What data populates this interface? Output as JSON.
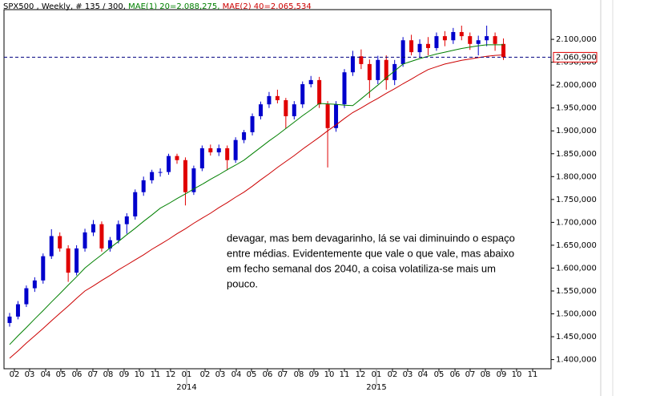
{
  "chart_data": {
    "type": "candlestick",
    "header": [
      "SPX500 , Weekly, # 135 / 300,",
      "MAE(1) 20=2.088,275,",
      "MAE(2) 40=2.065,534"
    ],
    "ohlc": [
      [
        1480,
        1502,
        1472,
        1494
      ],
      [
        1494,
        1528,
        1488,
        1521
      ],
      [
        1521,
        1562,
        1515,
        1556
      ],
      [
        1556,
        1580,
        1548,
        1573
      ],
      [
        1573,
        1632,
        1566,
        1626
      ],
      [
        1626,
        1685,
        1620,
        1670
      ],
      [
        1670,
        1678,
        1636,
        1643
      ],
      [
        1643,
        1650,
        1570,
        1590
      ],
      [
        1590,
        1650,
        1584,
        1643
      ],
      [
        1643,
        1686,
        1636,
        1678
      ],
      [
        1678,
        1705,
        1670,
        1696
      ],
      [
        1696,
        1702,
        1636,
        1643
      ],
      [
        1643,
        1668,
        1636,
        1661
      ],
      [
        1661,
        1704,
        1654,
        1696
      ],
      [
        1696,
        1720,
        1675,
        1713
      ],
      [
        1713,
        1772,
        1706,
        1766
      ],
      [
        1766,
        1800,
        1758,
        1792
      ],
      [
        1792,
        1815,
        1785,
        1810
      ],
      [
        1810,
        1818,
        1800,
        1810
      ],
      [
        1810,
        1850,
        1804,
        1845
      ],
      [
        1845,
        1850,
        1828,
        1836
      ],
      [
        1836,
        1842,
        1737,
        1766
      ],
      [
        1766,
        1824,
        1760,
        1818
      ],
      [
        1818,
        1868,
        1812,
        1862
      ],
      [
        1862,
        1870,
        1846,
        1853
      ],
      [
        1853,
        1870,
        1845,
        1862
      ],
      [
        1862,
        1868,
        1814,
        1836
      ],
      [
        1836,
        1886,
        1830,
        1880
      ],
      [
        1880,
        1902,
        1873,
        1897
      ],
      [
        1897,
        1938,
        1890,
        1932
      ],
      [
        1932,
        1964,
        1925,
        1958
      ],
      [
        1958,
        1985,
        1950,
        1976
      ],
      [
        1976,
        1990,
        1960,
        1967
      ],
      [
        1967,
        1972,
        1905,
        1932
      ],
      [
        1932,
        1965,
        1925,
        1958
      ],
      [
        1958,
        2008,
        1950,
        2002
      ],
      [
        2002,
        2020,
        1995,
        2011
      ],
      [
        2011,
        2018,
        1950,
        1958
      ],
      [
        1958,
        1965,
        1820,
        1906
      ],
      [
        1906,
        1965,
        1898,
        1958
      ],
      [
        1958,
        2035,
        1950,
        2028
      ],
      [
        2028,
        2075,
        2020,
        2063
      ],
      [
        2063,
        2078,
        2035,
        2046
      ],
      [
        2046,
        2056,
        1972,
        2011
      ],
      [
        2011,
        2064,
        2002,
        2055
      ],
      [
        2055,
        2065,
        1990,
        2011
      ],
      [
        2011,
        2055,
        2000,
        2046
      ],
      [
        2046,
        2105,
        2040,
        2098
      ],
      [
        2098,
        2110,
        2065,
        2072
      ],
      [
        2072,
        2100,
        2060,
        2090
      ],
      [
        2090,
        2105,
        2065,
        2081
      ],
      [
        2081,
        2115,
        2075,
        2107
      ],
      [
        2107,
        2118,
        2085,
        2098
      ],
      [
        2098,
        2125,
        2090,
        2116
      ],
      [
        2116,
        2130,
        2098,
        2107
      ],
      [
        2107,
        2115,
        2077,
        2090
      ],
      [
        2090,
        2108,
        2065,
        2098
      ],
      [
        2098,
        2130,
        2085,
        2107
      ],
      [
        2107,
        2115,
        2075,
        2090
      ],
      [
        2090,
        2102,
        2055,
        2060.9
      ]
    ],
    "up_color": "#0000cc",
    "down_color": "#e00000",
    "series": [
      {
        "color": "#008000",
        "values": [
          1433,
          1452,
          1470,
          1489,
          1507,
          1526,
          1544,
          1563,
          1581,
          1600,
          1615,
          1629,
          1644,
          1658,
          1673,
          1687,
          1702,
          1716,
          1731,
          1741,
          1752,
          1762,
          1773,
          1783,
          1794,
          1804,
          1815,
          1825,
          1836,
          1850,
          1864,
          1878,
          1891,
          1905,
          1919,
          1933,
          1946,
          1960,
          1959,
          1958,
          1956,
          1955,
          1970,
          1985,
          2000,
          2016,
          2031,
          2046,
          2052,
          2058,
          2063,
          2068,
          2072,
          2076,
          2080,
          2083,
          2086,
          2088,
          2088,
          2088
        ]
      },
      {
        "color": "#cc0000",
        "values": [
          1403,
          1419,
          1436,
          1452,
          1468,
          1485,
          1501,
          1517,
          1534,
          1550,
          1561,
          1573,
          1584,
          1596,
          1607,
          1618,
          1629,
          1641,
          1652,
          1663,
          1675,
          1686,
          1698,
          1709,
          1720,
          1732,
          1743,
          1755,
          1766,
          1779,
          1793,
          1806,
          1820,
          1833,
          1846,
          1860,
          1873,
          1886,
          1900,
          1913,
          1927,
          1940,
          1950,
          1961,
          1971,
          1982,
          1992,
          2003,
          2013,
          2024,
          2034,
          2040,
          2046,
          2050,
          2054,
          2057,
          2060,
          2063,
          2065,
          2066
        ]
      }
    ],
    "last_price": {
      "value": 2060.9,
      "label": "2.060,900"
    },
    "xlim": [
      -0.67,
      64.69
    ],
    "ylim": [
      1380,
      2165
    ],
    "yticks": [
      {
        "value": 1400,
        "label": "1.400,000"
      },
      {
        "value": 1450,
        "label": "1.450,000"
      },
      {
        "value": 1500,
        "label": "1.500,000"
      },
      {
        "value": 1550,
        "label": "1.550,000"
      },
      {
        "value": 1600,
        "label": "1.600,000"
      },
      {
        "value": 1650,
        "label": "1.650,000"
      },
      {
        "value": 1700,
        "label": "1.700,000"
      },
      {
        "value": 1750,
        "label": "1.750,000"
      },
      {
        "value": 1800,
        "label": "1.800,000"
      },
      {
        "value": 1850,
        "label": "1.850,000"
      },
      {
        "value": 1900,
        "label": "1.900,000"
      },
      {
        "value": 1950,
        "label": "1.950,000"
      },
      {
        "value": 2000,
        "label": "2.000,000"
      },
      {
        "value": 2050,
        "label": "2.050,000"
      },
      {
        "value": 2100,
        "label": "2.100,000"
      }
    ],
    "xticks": [
      {
        "value": 0.57,
        "label": "02"
      },
      {
        "value": 2.39,
        "label": "03"
      },
      {
        "value": 4.31,
        "label": "04"
      },
      {
        "value": 6.12,
        "label": "05"
      },
      {
        "value": 8.04,
        "label": "06"
      },
      {
        "value": 9.95,
        "label": "07"
      },
      {
        "value": 11.77,
        "label": "08"
      },
      {
        "value": 13.68,
        "label": "09"
      },
      {
        "value": 15.5,
        "label": "10"
      },
      {
        "value": 17.42,
        "label": "11"
      },
      {
        "value": 19.23,
        "label": "12"
      },
      {
        "value": 21.15,
        "label": "01"
      },
      {
        "value": 23.35,
        "label": "02"
      },
      {
        "value": 25.17,
        "label": "03"
      },
      {
        "value": 27.08,
        "label": "04"
      },
      {
        "value": 28.9,
        "label": "05"
      },
      {
        "value": 30.81,
        "label": "06"
      },
      {
        "value": 32.63,
        "label": "07"
      },
      {
        "value": 34.55,
        "label": "08"
      },
      {
        "value": 36.36,
        "label": "09"
      },
      {
        "value": 38.18,
        "label": "10"
      },
      {
        "value": 40.0,
        "label": "11"
      },
      {
        "value": 41.91,
        "label": "12"
      },
      {
        "value": 43.83,
        "label": "01"
      },
      {
        "value": 45.74,
        "label": "02"
      },
      {
        "value": 47.56,
        "label": "03"
      },
      {
        "value": 49.38,
        "label": "04"
      },
      {
        "value": 51.29,
        "label": "05"
      },
      {
        "value": 53.21,
        "label": "06"
      },
      {
        "value": 55.02,
        "label": "07"
      },
      {
        "value": 56.84,
        "label": "08"
      },
      {
        "value": 58.76,
        "label": "09"
      },
      {
        "value": 60.57,
        "label": "10"
      },
      {
        "value": 62.49,
        "label": "11"
      }
    ],
    "year_labels": [
      {
        "value": 21.15,
        "label": "2014"
      },
      {
        "value": 43.83,
        "label": "2015"
      }
    ],
    "annotation": [
      "devagar, mas bem devagarinho, lá se vai diminuindo o espaço",
      "entre médias. Evidentemente que vale o que vale, mas abaixo",
      "em fecho semanal dos 2040, a coisa volatiliza-se mais um",
      "pouco."
    ]
  }
}
